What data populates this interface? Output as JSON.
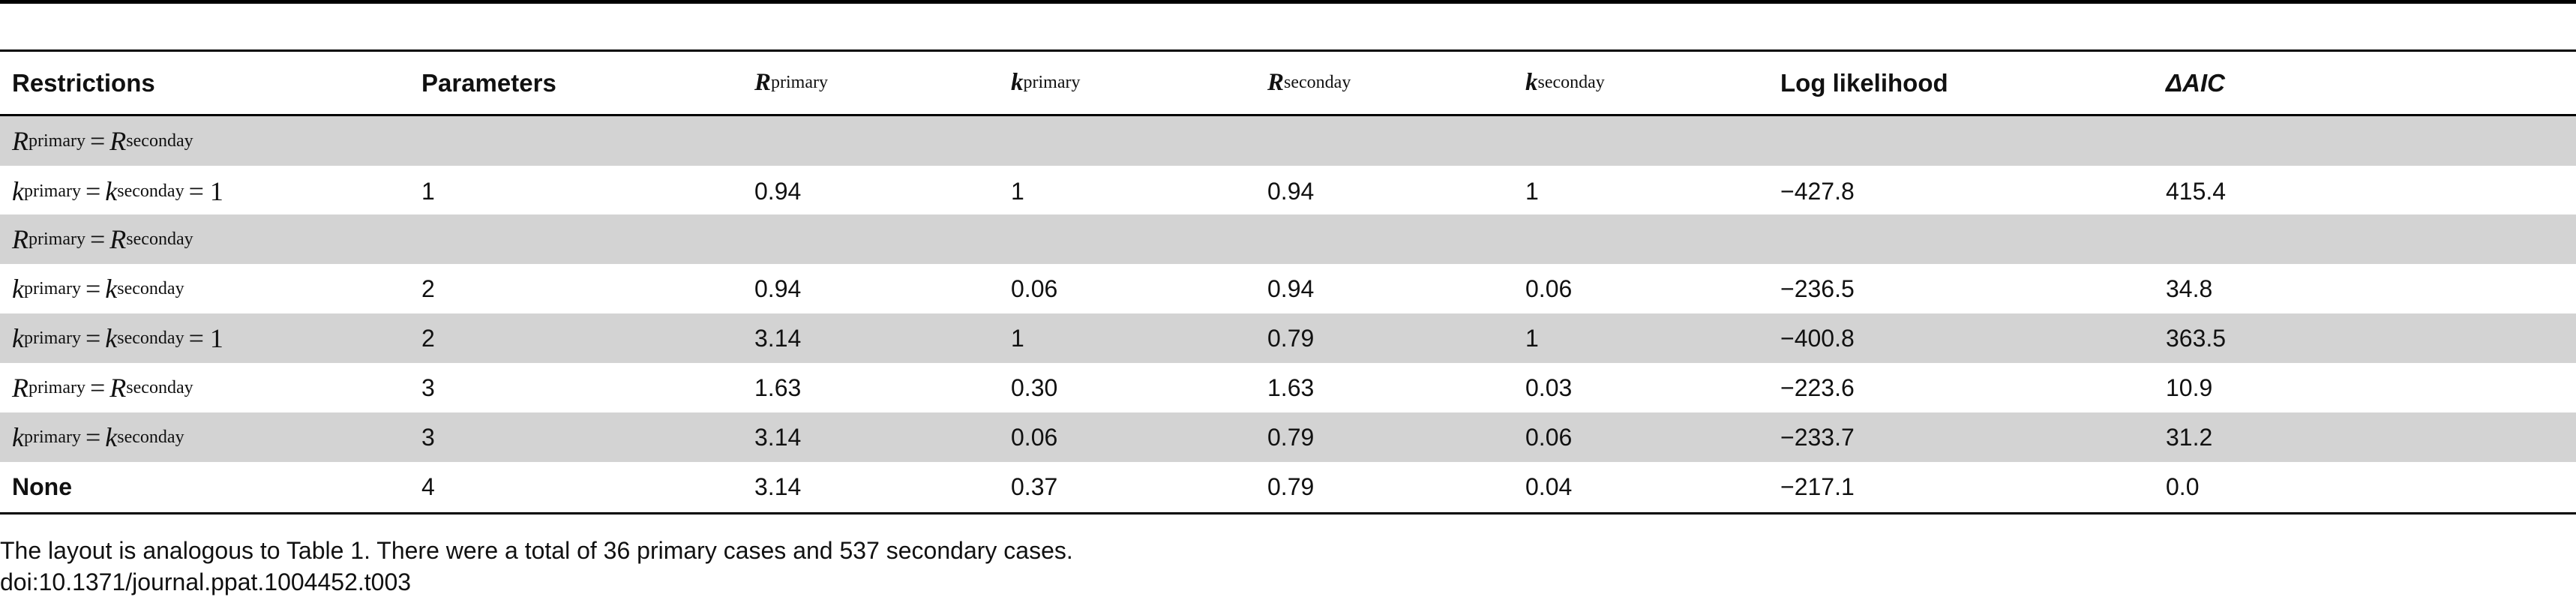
{
  "table": {
    "headers": {
      "restrictions": "Restrictions",
      "parameters": "Parameters",
      "r_primary": {
        "sym": "R",
        "sub": "primary"
      },
      "k_primary": {
        "sym": "k",
        "sub": "primary"
      },
      "r_seconday": {
        "sym": "R",
        "sub": "seconday"
      },
      "k_seconday": {
        "sym": "k",
        "sub": "seconday"
      },
      "log_likelihood": "Log likelihood",
      "delta_aic": "ΔAIC"
    },
    "rows": [
      {
        "restriction": "R_primary = R_seconday",
        "parameters": "",
        "r_primary": "",
        "k_primary": "",
        "r_seconday": "",
        "k_seconday": "",
        "log_likelihood": "",
        "delta_aic": ""
      },
      {
        "restriction": "k_primary = k_seconday = 1",
        "parameters": "1",
        "r_primary": "0.94",
        "k_primary": "1",
        "r_seconday": "0.94",
        "k_seconday": "1",
        "log_likelihood": "−427.8",
        "delta_aic": "415.4"
      },
      {
        "restriction": "R_primary = R_seconday",
        "parameters": "",
        "r_primary": "",
        "k_primary": "",
        "r_seconday": "",
        "k_seconday": "",
        "log_likelihood": "",
        "delta_aic": ""
      },
      {
        "restriction": "k_primary = k_seconday",
        "parameters": "2",
        "r_primary": "0.94",
        "k_primary": "0.06",
        "r_seconday": "0.94",
        "k_seconday": "0.06",
        "log_likelihood": "−236.5",
        "delta_aic": "34.8"
      },
      {
        "restriction": "k_primary = k_seconday = 1",
        "parameters": "2",
        "r_primary": "3.14",
        "k_primary": "1",
        "r_seconday": "0.79",
        "k_seconday": "1",
        "log_likelihood": "−400.8",
        "delta_aic": "363.5"
      },
      {
        "restriction": "R_primary = R_seconday",
        "parameters": "3",
        "r_primary": "1.63",
        "k_primary": "0.30",
        "r_seconday": "1.63",
        "k_seconday": "0.03",
        "log_likelihood": "−223.6",
        "delta_aic": "10.9"
      },
      {
        "restriction": "k_primary = k_seconday",
        "parameters": "3",
        "r_primary": "3.14",
        "k_primary": "0.06",
        "r_seconday": "0.79",
        "k_seconday": "0.06",
        "log_likelihood": "−233.7",
        "delta_aic": "31.2"
      },
      {
        "restriction": "None",
        "parameters": "4",
        "r_primary": "3.14",
        "k_primary": "0.37",
        "r_seconday": "0.79",
        "k_seconday": "0.04",
        "log_likelihood": "−217.1",
        "delta_aic": "0.0"
      }
    ]
  },
  "footnote": {
    "text": "The layout is analogous to Table 1. There were a total of 36 primary cases and 537 secondary cases.",
    "doi": "doi:10.1371/journal.ppat.1004452.t003"
  }
}
